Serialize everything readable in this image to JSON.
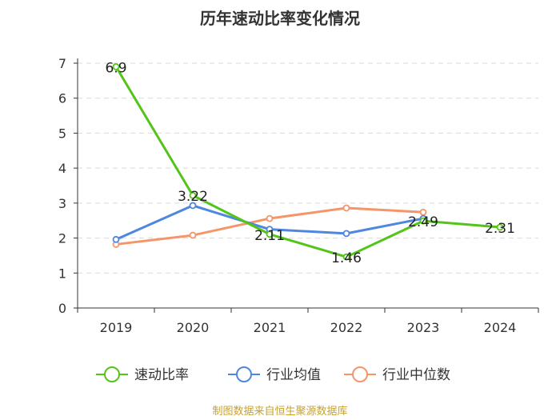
{
  "chart_data": {
    "type": "line",
    "title": "历年速动比率变化情况",
    "categories": [
      "2019",
      "2020",
      "2021",
      "2022",
      "2023",
      "2024"
    ],
    "ylim": [
      0,
      7
    ],
    "yticks": [
      0,
      1,
      2,
      3,
      4,
      5,
      6,
      7
    ],
    "grid": true,
    "legend_position": "bottom",
    "series": [
      {
        "name": "速动比率",
        "color": "#52c41a",
        "values": [
          6.9,
          3.22,
          2.11,
          1.46,
          2.49,
          2.31
        ],
        "labels": [
          "6.9",
          "3.22",
          "2.11",
          "1.46",
          "2.49",
          "2.31"
        ]
      },
      {
        "name": "行业均值",
        "color": "#4e86e0",
        "values": [
          1.96,
          2.93,
          2.25,
          2.13,
          2.56,
          null
        ]
      },
      {
        "name": "行业中位数",
        "color": "#f5956a",
        "values": [
          1.82,
          2.08,
          2.56,
          2.86,
          2.74,
          null
        ]
      }
    ],
    "source": "制图数据来自恒生聚源数据库"
  }
}
